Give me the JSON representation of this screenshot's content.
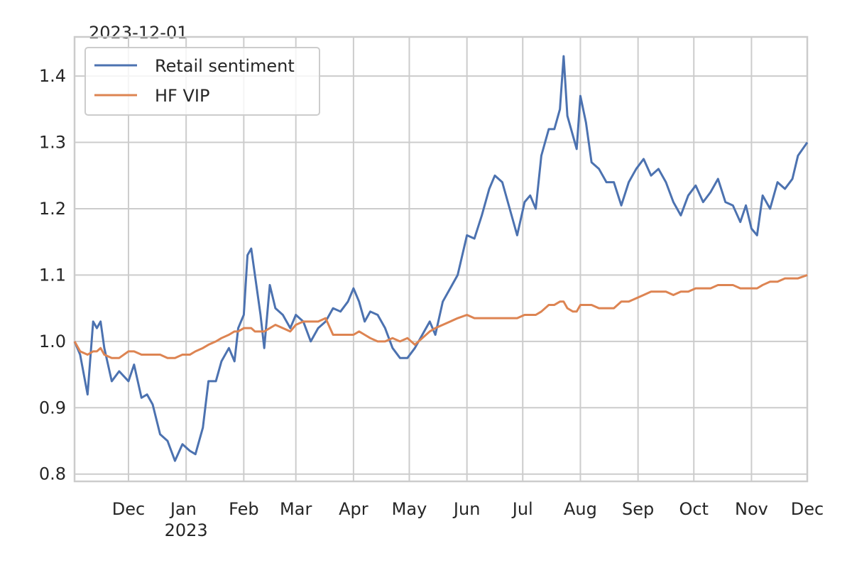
{
  "chart_data": {
    "type": "line",
    "offset_label": "2023-12-01",
    "x": [
      "2022-11-02",
      "2022-11-05",
      "2022-11-09",
      "2022-11-12",
      "2022-11-14",
      "2022-11-16",
      "2022-11-18",
      "2022-11-22",
      "2022-11-26",
      "2022-12-01",
      "2022-12-04",
      "2022-12-08",
      "2022-12-11",
      "2022-12-14",
      "2022-12-18",
      "2022-12-22",
      "2022-12-26",
      "2022-12-30",
      "2023-01-03",
      "2023-01-06",
      "2023-01-10",
      "2023-01-13",
      "2023-01-17",
      "2023-01-20",
      "2023-01-24",
      "2023-01-27",
      "2023-01-29",
      "2023-02-01",
      "2023-02-03",
      "2023-02-05",
      "2023-02-07",
      "2023-02-10",
      "2023-02-12",
      "2023-02-15",
      "2023-02-18",
      "2023-02-22",
      "2023-02-26",
      "2023-03-01",
      "2023-03-05",
      "2023-03-09",
      "2023-03-13",
      "2023-03-17",
      "2023-03-21",
      "2023-03-25",
      "2023-03-29",
      "2023-04-01",
      "2023-04-04",
      "2023-04-07",
      "2023-04-10",
      "2023-04-14",
      "2023-04-18",
      "2023-04-22",
      "2023-04-26",
      "2023-04-30",
      "2023-05-04",
      "2023-05-08",
      "2023-05-12",
      "2023-05-15",
      "2023-05-19",
      "2023-05-23",
      "2023-05-27",
      "2023-06-01",
      "2023-06-05",
      "2023-06-09",
      "2023-06-13",
      "2023-06-16",
      "2023-06-20",
      "2023-06-24",
      "2023-06-28",
      "2023-07-02",
      "2023-07-05",
      "2023-07-08",
      "2023-07-11",
      "2023-07-15",
      "2023-07-18",
      "2023-07-21",
      "2023-07-23",
      "2023-07-25",
      "2023-07-28",
      "2023-07-30",
      "2023-08-01",
      "2023-08-04",
      "2023-08-07",
      "2023-08-11",
      "2023-08-15",
      "2023-08-19",
      "2023-08-23",
      "2023-08-27",
      "2023-08-31",
      "2023-09-04",
      "2023-09-08",
      "2023-09-12",
      "2023-09-16",
      "2023-09-20",
      "2023-09-24",
      "2023-09-28",
      "2023-10-02",
      "2023-10-06",
      "2023-10-10",
      "2023-10-14",
      "2023-10-18",
      "2023-10-22",
      "2023-10-26",
      "2023-10-29",
      "2023-11-01",
      "2023-11-04",
      "2023-11-07",
      "2023-11-11",
      "2023-11-15",
      "2023-11-19",
      "2023-11-23",
      "2023-11-26",
      "2023-12-01"
    ],
    "series": [
      {
        "name": "Retail sentiment",
        "color": "#4c72b0",
        "values": [
          1.0,
          0.98,
          0.92,
          1.03,
          1.02,
          1.03,
          0.99,
          0.94,
          0.955,
          0.94,
          0.965,
          0.915,
          0.92,
          0.905,
          0.86,
          0.85,
          0.82,
          0.845,
          0.835,
          0.83,
          0.87,
          0.94,
          0.94,
          0.97,
          0.99,
          0.97,
          1.02,
          1.04,
          1.13,
          1.14,
          1.1,
          1.04,
          0.99,
          1.085,
          1.05,
          1.04,
          1.02,
          1.04,
          1.03,
          1.0,
          1.02,
          1.03,
          1.05,
          1.045,
          1.06,
          1.08,
          1.06,
          1.03,
          1.045,
          1.04,
          1.02,
          0.99,
          0.975,
          0.975,
          0.99,
          1.01,
          1.03,
          1.01,
          1.06,
          1.08,
          1.1,
          1.16,
          1.155,
          1.19,
          1.23,
          1.25,
          1.24,
          1.2,
          1.16,
          1.21,
          1.22,
          1.2,
          1.28,
          1.32,
          1.32,
          1.35,
          1.43,
          1.34,
          1.31,
          1.29,
          1.37,
          1.33,
          1.27,
          1.26,
          1.24,
          1.24,
          1.205,
          1.24,
          1.26,
          1.275,
          1.25,
          1.26,
          1.24,
          1.21,
          1.19,
          1.22,
          1.235,
          1.21,
          1.225,
          1.245,
          1.21,
          1.205,
          1.18,
          1.205,
          1.17,
          1.16,
          1.22,
          1.2,
          1.24,
          1.23,
          1.245,
          1.28,
          1.3
        ]
      },
      {
        "name": "HF VIP",
        "color": "#dd8452",
        "values": [
          1.0,
          0.985,
          0.98,
          0.985,
          0.985,
          0.99,
          0.98,
          0.975,
          0.975,
          0.985,
          0.985,
          0.98,
          0.98,
          0.98,
          0.98,
          0.975,
          0.975,
          0.98,
          0.98,
          0.985,
          0.99,
          0.995,
          1.0,
          1.005,
          1.01,
          1.015,
          1.015,
          1.02,
          1.02,
          1.02,
          1.015,
          1.015,
          1.015,
          1.02,
          1.025,
          1.02,
          1.015,
          1.025,
          1.03,
          1.03,
          1.03,
          1.035,
          1.01,
          1.01,
          1.01,
          1.01,
          1.015,
          1.01,
          1.005,
          1.0,
          1.0,
          1.005,
          1.0,
          1.005,
          0.995,
          1.005,
          1.015,
          1.02,
          1.025,
          1.03,
          1.035,
          1.04,
          1.035,
          1.035,
          1.035,
          1.035,
          1.035,
          1.035,
          1.035,
          1.04,
          1.04,
          1.04,
          1.045,
          1.055,
          1.055,
          1.06,
          1.06,
          1.05,
          1.045,
          1.045,
          1.055,
          1.055,
          1.055,
          1.05,
          1.05,
          1.05,
          1.06,
          1.06,
          1.065,
          1.07,
          1.075,
          1.075,
          1.075,
          1.07,
          1.075,
          1.075,
          1.08,
          1.08,
          1.08,
          1.085,
          1.085,
          1.085,
          1.08,
          1.08,
          1.08,
          1.08,
          1.085,
          1.09,
          1.09,
          1.095,
          1.095,
          1.095,
          1.1
        ]
      }
    ],
    "xlim": [
      "2022-11-02",
      "2023-12-01"
    ],
    "xticks": [
      {
        "value": "2022-12-01",
        "label": "Dec"
      },
      {
        "value": "2023-01-01",
        "label": "Jan\n2023"
      },
      {
        "value": "2023-02-01",
        "label": "Feb"
      },
      {
        "value": "2023-03-01",
        "label": "Mar"
      },
      {
        "value": "2023-04-01",
        "label": "Apr"
      },
      {
        "value": "2023-05-01",
        "label": "May"
      },
      {
        "value": "2023-06-01",
        "label": "Jun"
      },
      {
        "value": "2023-07-01",
        "label": "Jul"
      },
      {
        "value": "2023-08-01",
        "label": "Aug"
      },
      {
        "value": "2023-09-01",
        "label": "Sep"
      },
      {
        "value": "2023-10-01",
        "label": "Oct"
      },
      {
        "value": "2023-11-01",
        "label": "Nov"
      },
      {
        "value": "2023-12-01",
        "label": "Dec"
      }
    ],
    "ylim": [
      0.789,
      1.459
    ],
    "yticks": [
      0.8,
      0.9,
      {
        "value": 1,
        "label": "1.0"
      },
      1.1,
      1.2,
      1.3,
      1.4
    ],
    "grid": true,
    "legend": "upper left"
  }
}
